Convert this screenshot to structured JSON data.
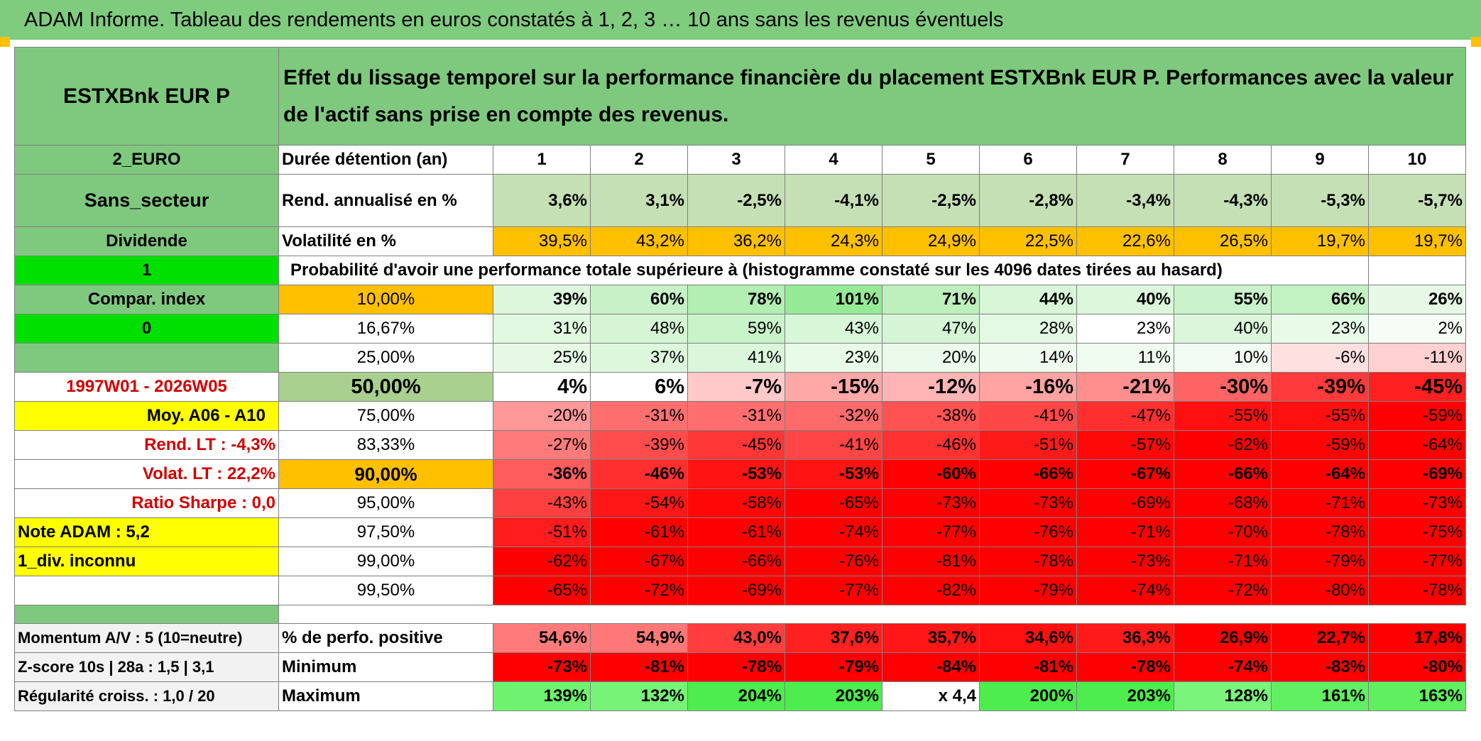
{
  "title": "ADAM Informe. Tableau des rendements en euros constatés à 1, 2, 3 … 10 ans sans les revenus éventuels",
  "fund_name": "ESTXBnk EUR P",
  "description": "Effet du lissage temporel sur la performance financière du placement ESTXBnk EUR P. Performances avec la valeur de l'actif sans prise en compte des revenus.",
  "left": {
    "currency": "2_EURO",
    "sector": "Sans_secteur",
    "dividend": "Dividende",
    "one": "1",
    "compar": "Compar. index",
    "zero": "0",
    "period": "1997W01 - 2026W05",
    "moy": "Moy. A06 - A10",
    "rend_lt": "Rend. LT :    -4,3%",
    "volat_lt": "Volat. LT :    22,2%",
    "sharpe": "Ratio Sharpe :    0,0",
    "note": "Note ADAM : 5,2",
    "div": "1_div. inconnu",
    "momentum": "Momentum A/V : 5 (10=neutre)",
    "zscore": "Z-score 10s | 28a : 1,5 | 3,1",
    "regularite": "Régularité croiss. : 1,0 / 20"
  },
  "row_labels": {
    "duree": "Durée détention (an)",
    "rend": "Rend. annualisé en %",
    "volat": "Volatilité en %",
    "proba": "Probabilité d'avoir une performance totale supérieure à (histogramme constaté sur les 4096 dates tirées au hasard)",
    "positive": "% de perfo. positive",
    "minimum": "Minimum",
    "maximum": "Maximum"
  },
  "years": [
    "1",
    "2",
    "3",
    "4",
    "5",
    "6",
    "7",
    "8",
    "9",
    "10"
  ],
  "rend": [
    "3,6%",
    "3,1%",
    "-2,5%",
    "-4,1%",
    "-2,5%",
    "-2,8%",
    "-3,4%",
    "-4,3%",
    "-5,3%",
    "-5,7%"
  ],
  "volat": [
    "39,5%",
    "43,2%",
    "36,2%",
    "24,3%",
    "24,9%",
    "22,5%",
    "22,6%",
    "26,5%",
    "19,7%",
    "19,7%"
  ],
  "prob_rows": [
    {
      "threshold": "10,00%",
      "values": [
        "39%",
        "60%",
        "78%",
        "101%",
        "71%",
        "44%",
        "40%",
        "55%",
        "66%",
        "26%"
      ]
    },
    {
      "threshold": "16,67%",
      "values": [
        "31%",
        "48%",
        "59%",
        "43%",
        "47%",
        "28%",
        "23%",
        "40%",
        "23%",
        "2%"
      ]
    },
    {
      "threshold": "25,00%",
      "values": [
        "25%",
        "37%",
        "41%",
        "23%",
        "20%",
        "14%",
        "11%",
        "10%",
        "-6%",
        "-11%"
      ]
    },
    {
      "threshold": "50,00%",
      "values": [
        "4%",
        "6%",
        "-7%",
        "-15%",
        "-12%",
        "-16%",
        "-21%",
        "-30%",
        "-39%",
        "-45%"
      ]
    },
    {
      "threshold": "75,00%",
      "values": [
        "-20%",
        "-31%",
        "-31%",
        "-32%",
        "-38%",
        "-41%",
        "-47%",
        "-55%",
        "-55%",
        "-59%"
      ]
    },
    {
      "threshold": "83,33%",
      "values": [
        "-27%",
        "-39%",
        "-45%",
        "-41%",
        "-46%",
        "-51%",
        "-57%",
        "-62%",
        "-59%",
        "-64%"
      ]
    },
    {
      "threshold": "90,00%",
      "values": [
        "-36%",
        "-46%",
        "-53%",
        "-53%",
        "-60%",
        "-66%",
        "-67%",
        "-66%",
        "-64%",
        "-69%"
      ]
    },
    {
      "threshold": "95,00%",
      "values": [
        "-43%",
        "-54%",
        "-58%",
        "-65%",
        "-73%",
        "-73%",
        "-69%",
        "-68%",
        "-71%",
        "-73%"
      ]
    },
    {
      "threshold": "97,50%",
      "values": [
        "-51%",
        "-61%",
        "-61%",
        "-74%",
        "-77%",
        "-76%",
        "-71%",
        "-70%",
        "-78%",
        "-75%"
      ]
    },
    {
      "threshold": "99,00%",
      "values": [
        "-62%",
        "-67%",
        "-66%",
        "-76%",
        "-81%",
        "-78%",
        "-73%",
        "-71%",
        "-79%",
        "-77%"
      ]
    },
    {
      "threshold": "99,50%",
      "values": [
        "-65%",
        "-72%",
        "-69%",
        "-77%",
        "-82%",
        "-79%",
        "-74%",
        "-72%",
        "-80%",
        "-78%"
      ]
    }
  ],
  "positive": [
    "54,6%",
    "54,9%",
    "43,0%",
    "37,6%",
    "35,7%",
    "34,6%",
    "36,3%",
    "26,9%",
    "22,7%",
    "17,8%"
  ],
  "minimum": [
    "-73%",
    "-81%",
    "-78%",
    "-79%",
    "-84%",
    "-81%",
    "-78%",
    "-74%",
    "-83%",
    "-80%"
  ],
  "maximum": [
    "139%",
    "132%",
    "204%",
    "203%",
    "x 4,4",
    "200%",
    "203%",
    "128%",
    "161%",
    "163%"
  ],
  "colors": {
    "header_green": "#7fc97f",
    "bright_green": "#00e000",
    "yellow": "#ffff00",
    "orange": "#ffc000",
    "red": "#ff0000",
    "label_red": "#d40000"
  }
}
